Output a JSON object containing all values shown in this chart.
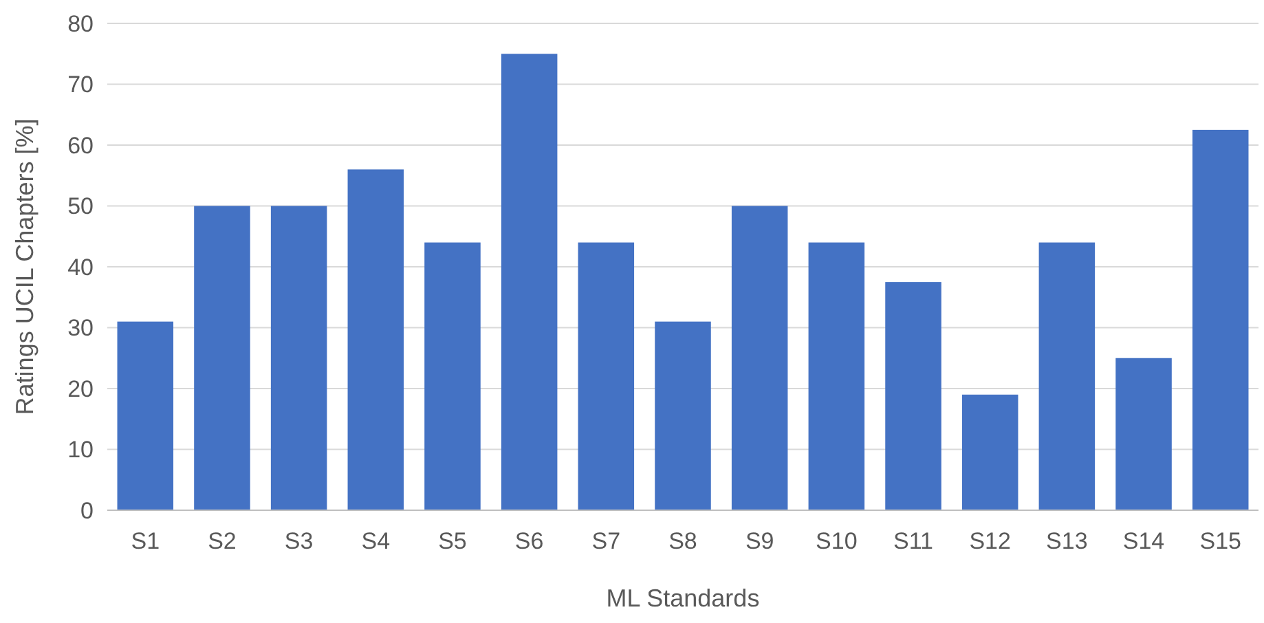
{
  "chart_data": {
    "type": "bar",
    "xlabel": "ML Standards",
    "ylabel": "Ratings UCIL Chapters [%]",
    "categories": [
      "S1",
      "S2",
      "S3",
      "S4",
      "S5",
      "S6",
      "S7",
      "S8",
      "S9",
      "S10",
      "S11",
      "S12",
      "S13",
      "S14",
      "S15"
    ],
    "values": [
      31,
      50,
      50,
      56,
      44,
      75,
      44,
      31,
      50,
      44,
      37.5,
      19,
      44,
      25,
      62.5
    ],
    "color": "#4472c4",
    "ylim": [
      0,
      80
    ],
    "yticks": [
      0,
      10,
      20,
      30,
      40,
      50,
      60,
      70,
      80
    ],
    "grid": "y"
  }
}
